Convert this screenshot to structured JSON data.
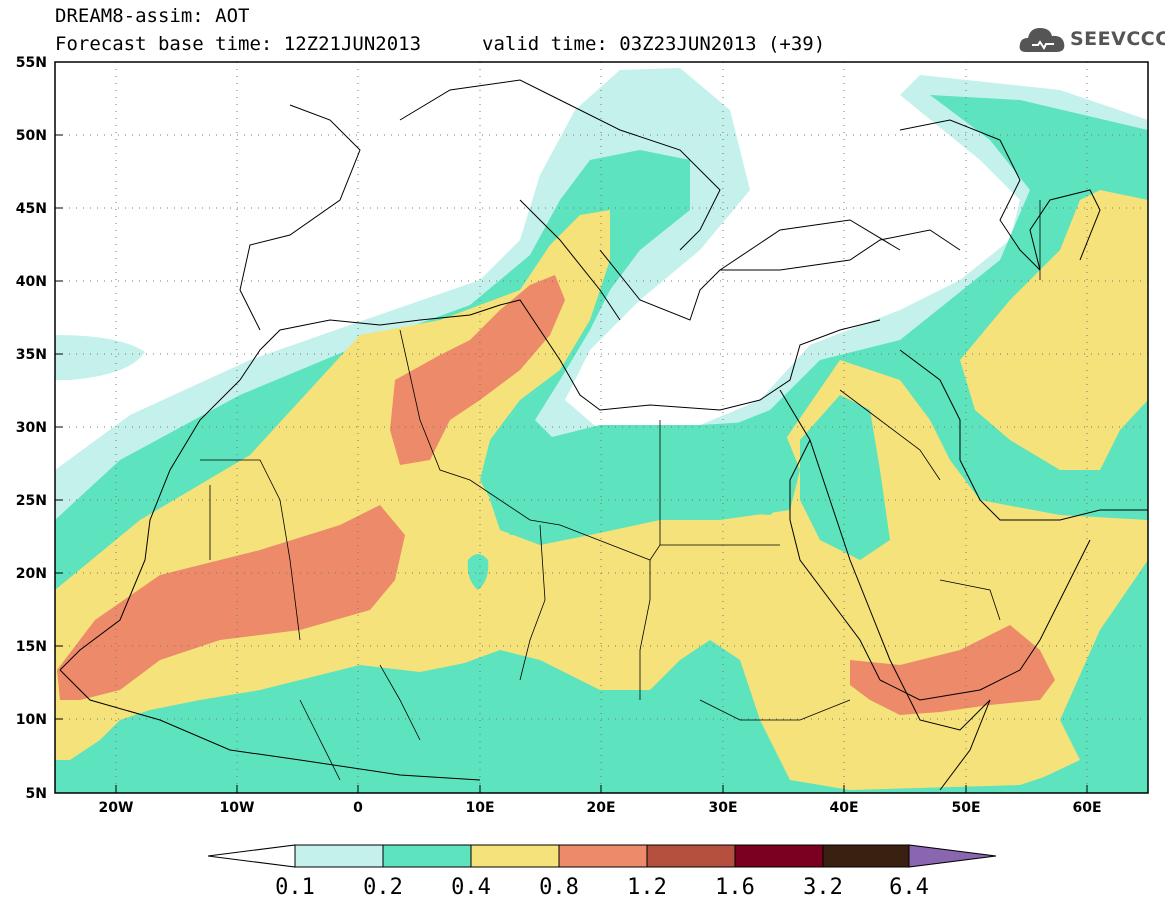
{
  "header": {
    "title": "DREAM8-assim: AOT",
    "base_time": "Forecast base time: 12Z21JUN2013",
    "valid_time": "valid time: 03Z23JUN2013 (+39)"
  },
  "logo": {
    "text": "SEEVCCC",
    "icon": "cloud-icon"
  },
  "map": {
    "variable": "AOT",
    "lat_labels": [
      "55N",
      "50N",
      "45N",
      "40N",
      "35N",
      "30N",
      "25N",
      "20N",
      "15N",
      "10N",
      "5N"
    ],
    "lon_labels": [
      "20W",
      "10W",
      "0",
      "10E",
      "20E",
      "30E",
      "40E",
      "50E",
      "60E"
    ],
    "lat_range": [
      5,
      55
    ],
    "lon_range": [
      -25,
      65
    ],
    "grid": true
  },
  "colorbar": {
    "levels": [
      "0.1",
      "0.2",
      "0.4",
      "0.8",
      "1.2",
      "1.6",
      "3.2",
      "6.4"
    ],
    "colors": [
      "#ffffff",
      "#c4f1ec",
      "#5de3bd",
      "#f5e27a",
      "#ec8a6a",
      "#b5503f",
      "#7a0020",
      "#3a2010",
      "#8a66b0"
    ]
  },
  "colors": {
    "aot_0_1": "#c4f1ec",
    "aot_0_2": "#5de3bd",
    "aot_0_4": "#f5e27a",
    "aot_0_8": "#ec8a6a"
  }
}
